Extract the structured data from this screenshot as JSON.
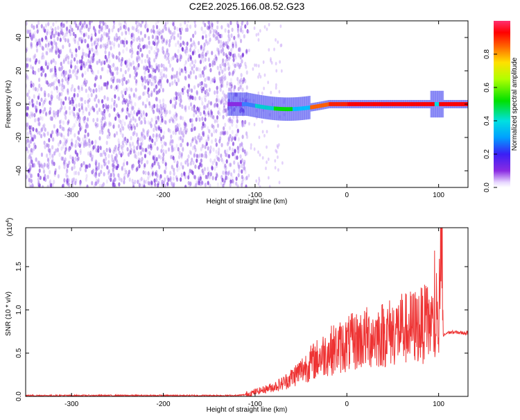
{
  "figure_title": "C2E2.2025.166.08.52.G23",
  "colors": {
    "snr_line": "#ee3333",
    "scatter_points": "#6a1fd6",
    "axis": "#000000",
    "background": "#ffffff"
  },
  "chart_data": [
    {
      "type": "heatmap",
      "xlabel": "Height of straight line (km)",
      "ylabel": "Frequency (Hz)",
      "xlim": [
        -350,
        132
      ],
      "ylim": [
        -50,
        50
      ],
      "xticks": [
        -300,
        -200,
        -100,
        0,
        100
      ],
      "yticks": [
        -40,
        -20,
        0,
        20,
        40
      ],
      "grid": false,
      "colormap": "rainbow (white-purple-blue-cyan-green-yellow-red-magenta)",
      "colorbar": {
        "label": "Normalized spectral amplitude",
        "range": [
          0.0,
          1.0
        ],
        "ticks": [
          0.0,
          0.2,
          0.4,
          0.6,
          0.8
        ]
      },
      "description_values": {
        "noise_region_x": [
          -350,
          -108
        ],
        "noise_amplitude": 0.15,
        "signal_track_x": [
          -130,
          132
        ],
        "signal_track_frequency_hz": 0,
        "signal_peak_amplitude": 1.0
      }
    },
    {
      "type": "line",
      "xlabel": "Height of straight line (km)",
      "ylabel": "SNR (10 * v/v)",
      "y_multiplier_label": "(x10",
      "y_multiplier_exp": "4",
      "xlim": [
        -350,
        132
      ],
      "ylim": [
        0,
        1.95
      ],
      "xticks": [
        -300,
        -200,
        -100,
        0,
        100
      ],
      "ytick_labels": [
        "0.0",
        "0.5",
        "1.0",
        "1.5"
      ],
      "ytick_values": [
        0.0,
        0.5,
        1.0,
        1.5
      ],
      "grid": false,
      "series": [
        {
          "x": [
            -350,
            -300,
            -250,
            -200,
            -150,
            -120,
            -110,
            -100,
            -90,
            -80,
            -70,
            -60,
            -50,
            -40,
            -30,
            -20,
            -10,
            0,
            10,
            20,
            30,
            40,
            50,
            60,
            70,
            80,
            90,
            95,
            100,
            103,
            105,
            110,
            120,
            132
          ],
          "values": [
            0.01,
            0.01,
            0.01,
            0.01,
            0.01,
            0.01,
            0.02,
            0.05,
            0.08,
            0.11,
            0.15,
            0.22,
            0.3,
            0.38,
            0.45,
            0.52,
            0.56,
            0.6,
            0.64,
            0.67,
            0.7,
            0.72,
            0.75,
            0.77,
            0.8,
            0.82,
            0.85,
            0.8,
            0.75,
            1.95,
            0.7,
            0.74,
            0.74,
            0.73
          ]
        }
      ]
    }
  ]
}
